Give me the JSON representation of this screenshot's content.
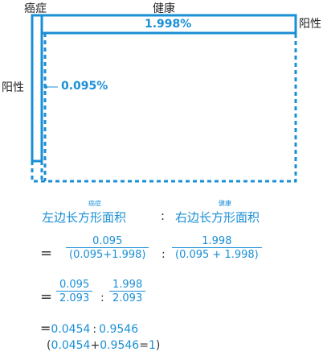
{
  "diagram": {
    "label_cancer": "癌症",
    "label_healthy": "健康",
    "label_positive_right": "阳性",
    "label_positive_left": "阳性",
    "pct_healthy_positive": "1.998%",
    "pct_cancer_positive": "0.095%",
    "colors": {
      "accent": "#1a8fd6"
    }
  },
  "formula": {
    "ruby_left": "癌症",
    "ruby_right": "健康",
    "left_area": "左边长方形面积",
    "colon": ":",
    "right_area": "右边长方形面积",
    "eq": "=",
    "line1": {
      "num1": "0.095",
      "den1": "(0.095+1.998)",
      "sep": ":",
      "num2": "1.998",
      "den2": "(0.095 + 1.998)"
    },
    "line2": {
      "num1": "0.095",
      "den1": "2.093",
      "sep": ":",
      "num2": "1.998",
      "den2": "2.093"
    },
    "line3": {
      "a": "0.0454",
      "sep": ":",
      "b": "0.9546"
    },
    "line4": {
      "open": "(",
      "a": "0.0454",
      "plus": "+",
      "b": "0.9546",
      "eq": "=",
      "one": "1",
      "close": ")"
    }
  }
}
